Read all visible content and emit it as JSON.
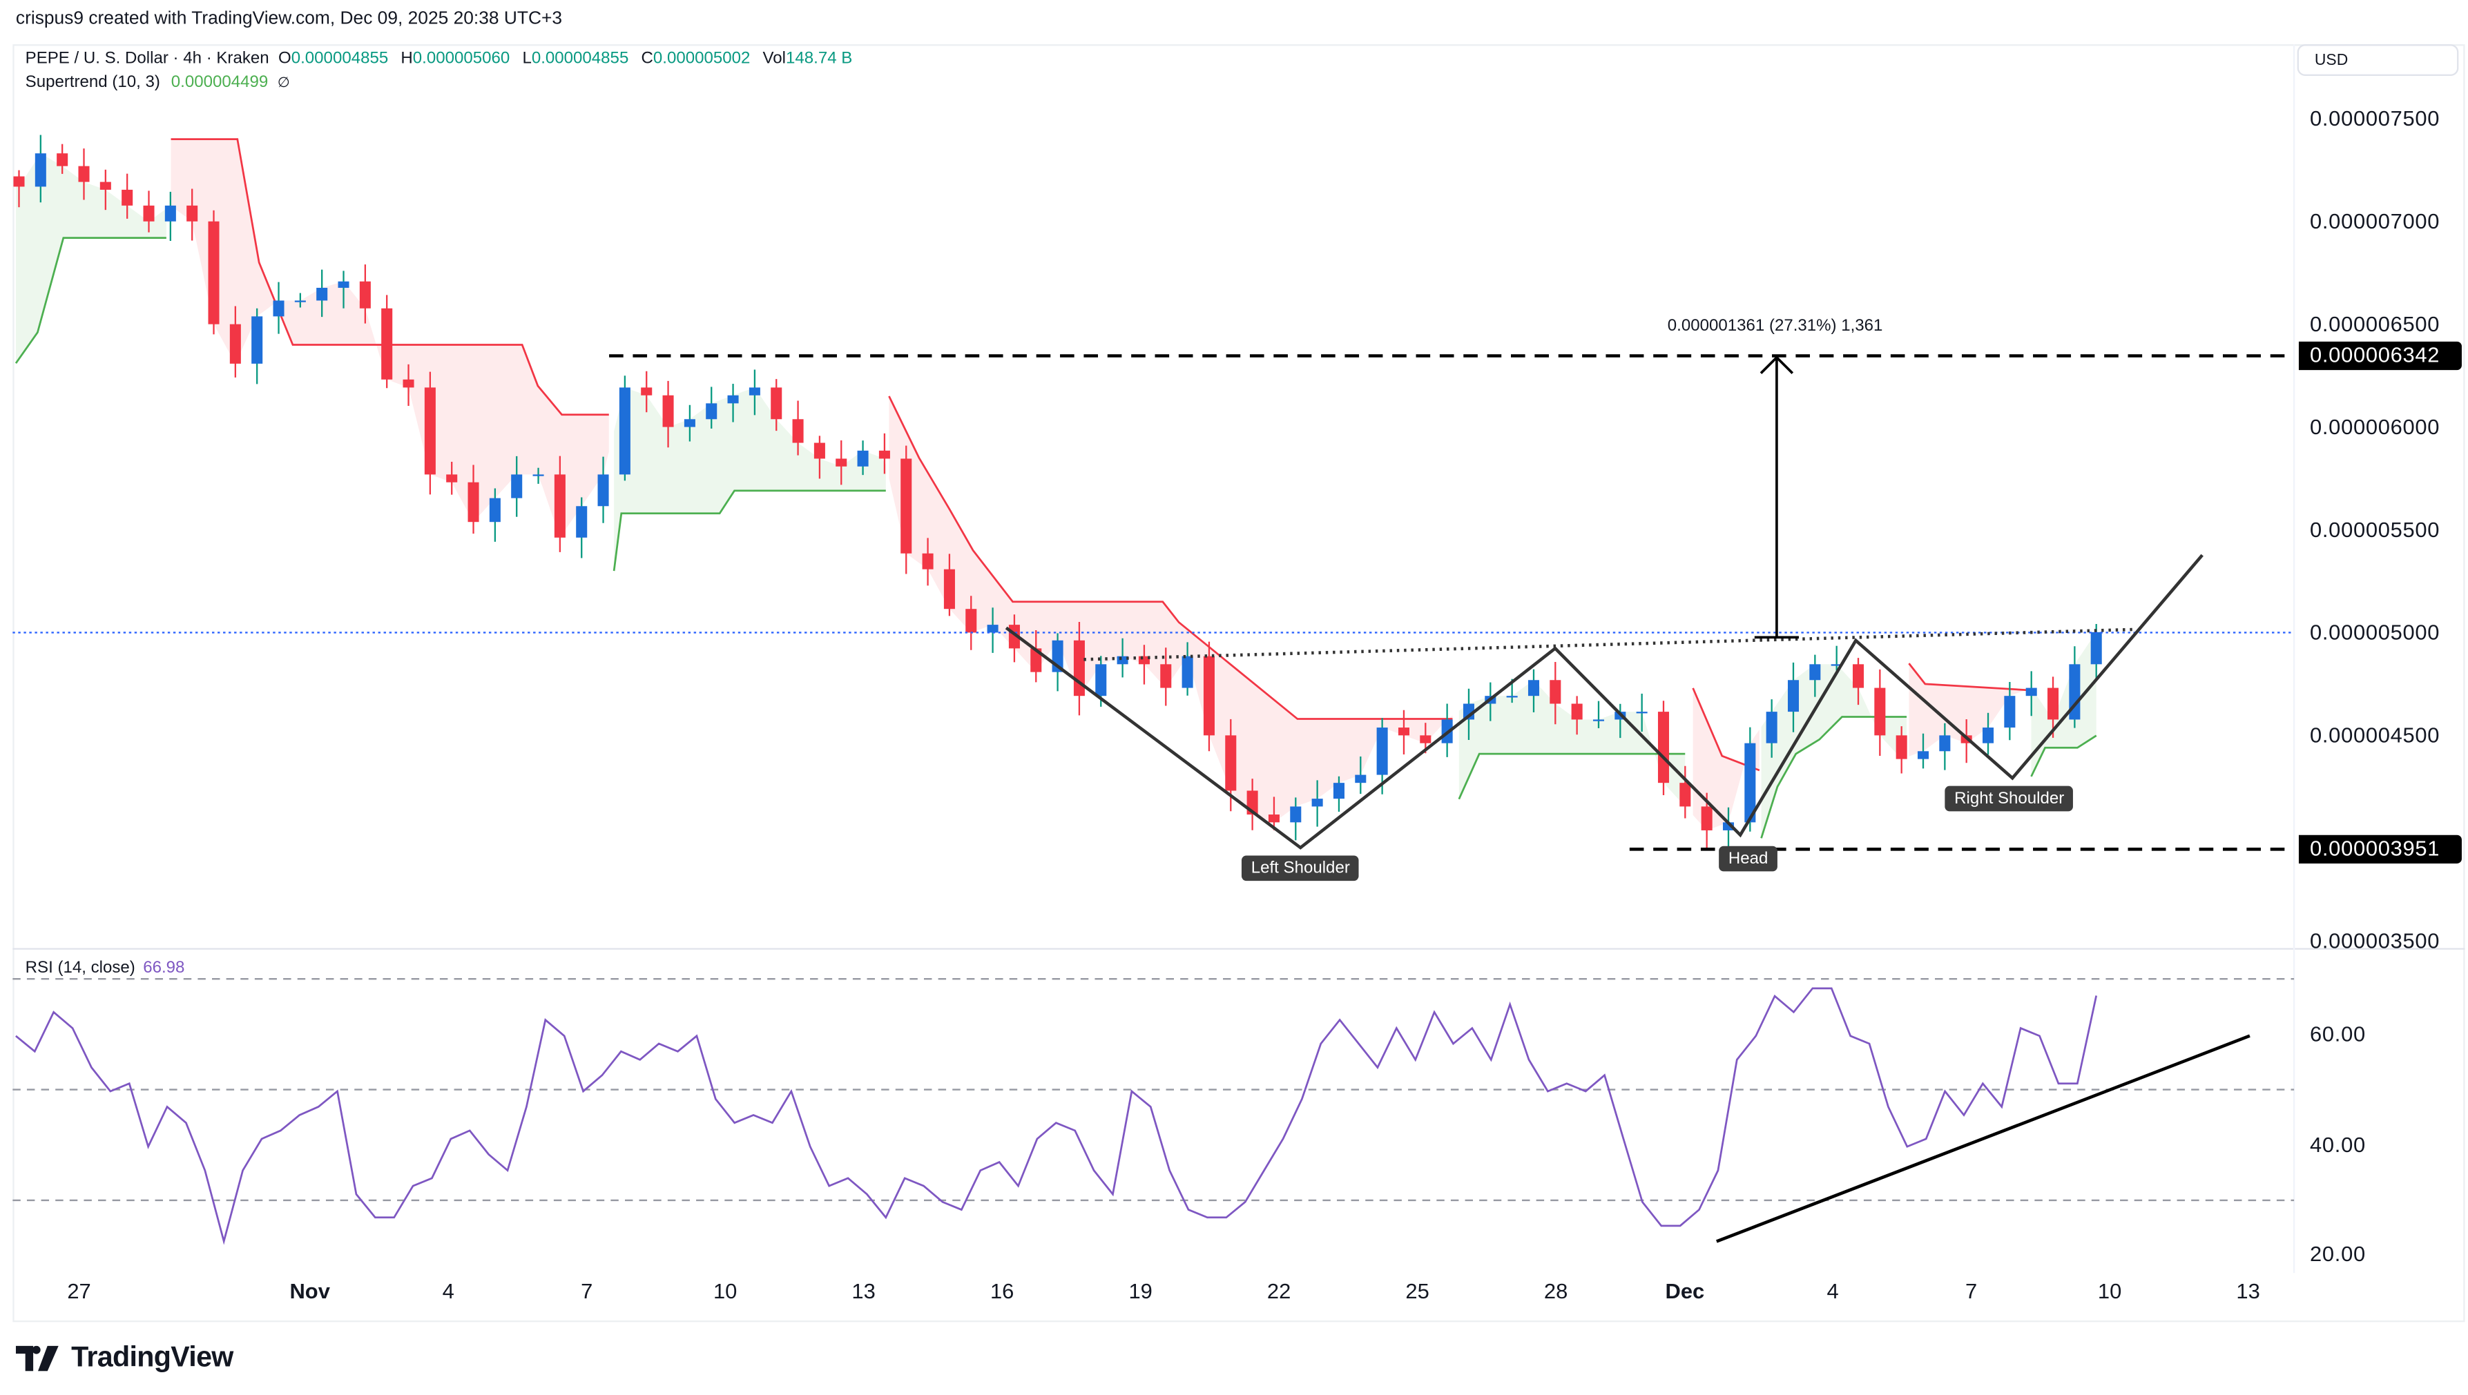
{
  "header": {
    "credit": "crispus9 created with TradingView.com, Dec 09, 2025 20:38 UTC+3"
  },
  "legend": {
    "symbol": "PEPE / U. S. Dollar · 4h · Kraken",
    "o_label": "O",
    "o": "0.000004855",
    "h_label": "H",
    "h": "0.000005060",
    "l_label": "L",
    "l": "0.000004855",
    "c_label": "C",
    "c": "0.000005002",
    "vol_label": "Vol",
    "vol": "148.74 B",
    "supertrend_label": "Supertrend (10, 3)",
    "supertrend_value": "0.000004499",
    "supertrend_icon": "∅"
  },
  "currency": "USD",
  "price_axis": {
    "ticks": [
      "0.000007500",
      "0.000007000",
      "0.000006500",
      "0.000006000",
      "0.000005500",
      "0.000005000",
      "0.000004500",
      "0.000003500"
    ],
    "target_marker": "0.000006342",
    "support_marker": "0.000003951"
  },
  "rsi": {
    "label": "RSI (14, close)",
    "value": "66.98",
    "ticks": [
      "60.00",
      "40.00",
      "20.00"
    ]
  },
  "time_axis": [
    "27",
    "Nov",
    "4",
    "7",
    "10",
    "13",
    "16",
    "19",
    "22",
    "25",
    "28",
    "Dec",
    "4",
    "7",
    "10",
    "13"
  ],
  "annotations": {
    "measure": "0.000001361 (27.31%) 1,361",
    "left_shoulder": "Left Shoulder",
    "head": "Head",
    "right_shoulder": "Right Shoulder"
  },
  "logo": "TradingView",
  "colors": {
    "up": "#1e6fd9",
    "up_wick": "#089981",
    "down": "#f23645",
    "supertrend_up": "#4caf50",
    "supertrend_down": "#f23645",
    "rsi": "#7e57c2",
    "last_price_line": "#2962ff"
  },
  "chart_data": [
    {
      "type": "candlestick",
      "interval": "4h",
      "y_range": [
        3.5e-06,
        7.7e-06
      ],
      "closes": [
        7.169e-06,
        7.331e-06,
        7.269e-06,
        7.192e-06,
        7.154e-06,
        7.077e-06,
        7e-06,
        7.077e-06,
        7e-06,
        6.5e-06,
        6.308e-06,
        6.538e-06,
        6.615e-06,
        6.615e-06,
        6.677e-06,
        6.708e-06,
        6.577e-06,
        6.231e-06,
        6.192e-06,
        5.769e-06,
        5.731e-06,
        5.538e-06,
        5.654e-06,
        5.769e-06,
        5.769e-06,
        5.462e-06,
        5.615e-06,
        5.769e-06,
        6.192e-06,
        6.154e-06,
        6e-06,
        6.038e-06,
        6.115e-06,
        6.154e-06,
        6.192e-06,
        6.038e-06,
        5.923e-06,
        5.846e-06,
        5.808e-06,
        5.885e-06,
        5.846e-06,
        5.385e-06,
        5.308e-06,
        5.115e-06,
        5e-06,
        5.038e-06,
        4.923e-06,
        4.808e-06,
        4.962e-06,
        4.692e-06,
        4.846e-06,
        4.885e-06,
        4.846e-06,
        4.731e-06,
        4.885e-06,
        4.5e-06,
        4.231e-06,
        4.115e-06,
        4.077e-06,
        4.154e-06,
        4.192e-06,
        4.269e-06,
        4.308e-06,
        4.538e-06,
        4.5e-06,
        4.462e-06,
        4.577e-06,
        4.654e-06,
        4.692e-06,
        4.692e-06,
        4.769e-06,
        4.654e-06,
        4.577e-06,
        4.577e-06,
        4.615e-06,
        4.615e-06,
        4.269e-06,
        4.154e-06,
        4.038e-06,
        4.077e-06,
        4.462e-06,
        4.615e-06,
        4.769e-06,
        4.846e-06,
        4.846e-06,
        4.731e-06,
        4.5e-06,
        4.385e-06,
        4.423e-06,
        4.5e-06,
        4.462e-06,
        4.538e-06,
        4.692e-06,
        4.731e-06,
        4.577e-06,
        4.846e-06,
        5.002e-06
      ],
      "supertrend": [
        {
          "trend": "up",
          "points": [
            [
              -1.37,
              6.31e-06
            ],
            [
              -0.9,
              6.46e-06
            ],
            [
              -0.34,
              6.92e-06
            ],
            [
              1.89,
              6.92e-06
            ]
          ]
        },
        {
          "trend": "down",
          "points": [
            [
              1.99,
              7.4e-06
            ],
            [
              3.43,
              7.4e-06
            ],
            [
              3.9,
              6.8e-06
            ],
            [
              4.63,
              6.4e-06
            ],
            [
              9.6,
              6.4e-06
            ],
            [
              9.94,
              6.2e-06
            ],
            [
              10.46,
              6.06e-06
            ],
            [
              11.48,
              6.06e-06
            ]
          ]
        },
        {
          "trend": "up",
          "points": [
            [
              11.59,
              5.3e-06
            ],
            [
              11.75,
              5.58e-06
            ],
            [
              13.88,
              5.58e-06
            ],
            [
              14.2,
              5.69e-06
            ],
            [
              17.48,
              5.69e-06
            ]
          ]
        },
        {
          "trend": "down",
          "points": [
            [
              17.55,
              6.15e-06
            ],
            [
              18.2,
              5.85e-06
            ],
            [
              18.86,
              5.6e-06
            ],
            [
              19.37,
              5.4e-06
            ],
            [
              20.23,
              5.15e-06
            ],
            [
              23.48,
              5.15e-06
            ],
            [
              23.83,
              5.05e-06
            ],
            [
              26.4,
              4.58e-06
            ],
            [
              29.76,
              4.58e-06
            ]
          ]
        },
        {
          "trend": "up",
          "points": [
            [
              29.9,
              4.19e-06
            ],
            [
              30.34,
              4.41e-06
            ],
            [
              34.8,
              4.41e-06
            ]
          ]
        },
        {
          "trend": "down",
          "points": [
            [
              34.97,
              4.73e-06
            ],
            [
              35.6,
              4.4e-06
            ],
            [
              36.41,
              4.33e-06
            ]
          ]
        },
        {
          "trend": "up",
          "points": [
            [
              36.45,
              4e-06
            ],
            [
              36.8,
              4.25e-06
            ],
            [
              37.2,
              4.41e-06
            ],
            [
              37.71,
              4.48e-06
            ],
            [
              38.2,
              4.59e-06
            ],
            [
              39.6,
              4.59e-06
            ]
          ]
        },
        {
          "trend": "down",
          "points": [
            [
              39.65,
              4.85e-06
            ],
            [
              40.0,
              4.75e-06
            ],
            [
              42.24,
              4.72e-06
            ]
          ]
        },
        {
          "trend": "up",
          "points": [
            [
              42.3,
              4.3e-06
            ],
            [
              42.6,
              4.44e-06
            ],
            [
              43.3,
              4.44e-06
            ],
            [
              43.71,
              4.499e-06
            ]
          ]
        }
      ],
      "last_price": 5.002e-06,
      "target_level": 6.342e-06,
      "support_level": 3.951e-06
    },
    {
      "type": "line",
      "name": "RSI (14, close)",
      "y_range": [
        15,
        75
      ],
      "levels": [
        70,
        50,
        30
      ],
      "values": [
        59.7,
        56.9,
        64,
        61.1,
        54,
        49.7,
        51.1,
        39.7,
        46.9,
        44,
        35.4,
        22.6,
        35.4,
        41.1,
        42.6,
        45.4,
        46.9,
        49.7,
        31.1,
        26.9,
        26.9,
        32.6,
        34,
        41.1,
        42.6,
        38.3,
        35.4,
        46.9,
        62.6,
        59.7,
        49.7,
        52.6,
        56.9,
        55.4,
        58.3,
        56.9,
        59.7,
        48.3,
        44,
        45.4,
        44,
        49.7,
        39.7,
        32.6,
        34,
        31.1,
        26.9,
        34,
        32.6,
        29.7,
        28.3,
        35.4,
        36.9,
        32.6,
        41.1,
        44,
        42.6,
        35.4,
        31.1,
        49.7,
        46.9,
        35.4,
        28.3,
        26.9,
        26.9,
        29.7,
        35.4,
        41.1,
        48.3,
        58.3,
        62.6,
        58.3,
        54,
        61.1,
        55.4,
        64,
        58.3,
        61.1,
        55.4,
        65.4,
        55.4,
        49.7,
        51.1,
        49.7,
        52.6,
        41.1,
        29.7,
        25.4,
        25.4,
        28.3,
        35.4,
        55.4,
        59.7,
        66.9,
        64,
        68.3,
        68.3,
        59.7,
        58.3,
        46.9,
        39.7,
        41.1,
        49.7,
        45.4,
        51.1,
        46.9,
        61.1,
        59.7,
        51.1,
        51.1,
        66.98
      ]
    }
  ]
}
